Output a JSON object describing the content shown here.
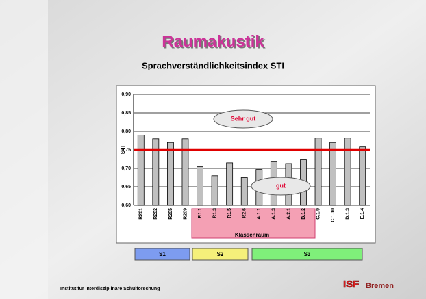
{
  "chart_data": {
    "type": "bar",
    "title": "Raumakustik",
    "subtitle": "Sprachverständlichkeitsindex STI",
    "ylabel": "STI",
    "xlabel": "Klassenraum",
    "categories": [
      "R201",
      "R202",
      "R205",
      "R209",
      "R1.1",
      "R1.3",
      "R1.5",
      "R2.6",
      "A.1.1",
      "A.1.3",
      "A.2.1",
      "B.1.2",
      "C.1.9",
      "C.1.10",
      "D.1.3",
      "E.1.4"
    ],
    "values": [
      0.79,
      0.78,
      0.77,
      0.78,
      0.705,
      0.68,
      0.715,
      0.675,
      0.697,
      0.718,
      0.713,
      0.723,
      0.782,
      0.77,
      0.782,
      0.758
    ],
    "color": "#c0c0c0",
    "ylim": [
      0.6,
      0.9
    ],
    "yticks": [
      {
        "value": 0.6,
        "label": "0,60"
      },
      {
        "value": 0.65,
        "label": "0,65"
      },
      {
        "value": 0.7,
        "label": "0,70"
      },
      {
        "value": 0.75,
        "label": "0,75"
      },
      {
        "value": 0.8,
        "label": "0,80"
      },
      {
        "value": 0.85,
        "label": "0,85"
      },
      {
        "value": 0.9,
        "label": "0,90"
      }
    ],
    "grid": true,
    "reference_line": {
      "value": 0.75,
      "color": "#e00000"
    },
    "annotations": [
      {
        "text": "Sehr gut"
      },
      {
        "text": "gut"
      }
    ],
    "groups": [
      {
        "name": "S1",
        "color": "#7d9cf0"
      },
      {
        "name": "S2",
        "color": "#f5f07a"
      },
      {
        "name": "S3",
        "color": "#7ff07a"
      }
    ]
  },
  "footer": {
    "institute": "Institut für interdisziplinäre Schulforschung",
    "logo_isf": "ISF",
    "logo_text": "Bremen"
  }
}
